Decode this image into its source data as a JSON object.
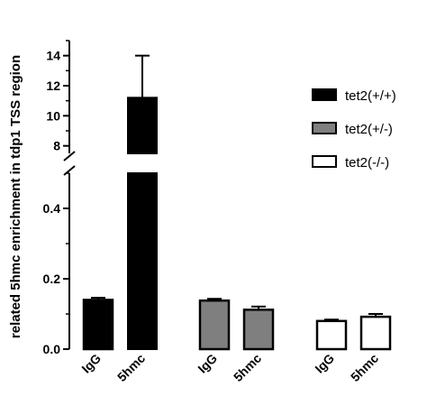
{
  "chart_data": {
    "type": "bar",
    "title": "",
    "xlabel": "",
    "ylabel": "related 5hmc enrichment  in tdp1 TSS region",
    "y_axis_break": true,
    "lower_ylim": [
      0,
      0.5
    ],
    "lower_yticks": [
      "0.0",
      "0.2",
      "0.4"
    ],
    "lower_yticks_values": [
      0,
      0.2,
      0.4
    ],
    "upper_ylim": [
      7.5,
      15
    ],
    "upper_yticks": [
      "8",
      "10",
      "12",
      "14"
    ],
    "upper_yticks_values": [
      8,
      10,
      12,
      14
    ],
    "categories": [
      "IgG",
      "5hmc"
    ],
    "series": [
      {
        "name": "tet2(+/+)",
        "color": "#000000",
        "values": [
          0.14,
          11.2
        ],
        "errors": [
          0.006,
          2.8
        ]
      },
      {
        "name": "tet2(+/-)",
        "color": "#7f7f7f",
        "values": [
          0.138,
          0.112
        ],
        "errors": [
          0.005,
          0.009
        ]
      },
      {
        "name": "tet2(-/-)",
        "color": "#ffffff",
        "values": [
          0.08,
          0.092
        ],
        "errors": [
          0.004,
          0.008
        ]
      }
    ],
    "legend_position": "right",
    "grid": false
  }
}
